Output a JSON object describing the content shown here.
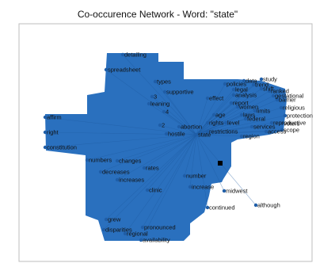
{
  "chart_data": {
    "type": "network",
    "title": "Co-occurence Network - Word: \"state\"",
    "center_word": "state",
    "colors": {
      "region": "#2a70be",
      "node": "#1f5ea8",
      "edge": "#1d5aa0",
      "axes_border": "#bdbdbd",
      "center_marker": "#000000"
    },
    "nodes": [
      {
        "label": "detailing"
      },
      {
        "label": "spreadsheet"
      },
      {
        "label": "types"
      },
      {
        "label": "supportive"
      },
      {
        "label": "3"
      },
      {
        "label": "leaning"
      },
      {
        "label": "4"
      },
      {
        "label": "2"
      },
      {
        "label": "hostile"
      },
      {
        "label": "abortion"
      },
      {
        "label": "state"
      },
      {
        "label": "affirm"
      },
      {
        "label": "right"
      },
      {
        "label": "constitution"
      },
      {
        "label": "numbers"
      },
      {
        "label": "changes"
      },
      {
        "label": "decreases"
      },
      {
        "label": "rates"
      },
      {
        "label": "increases"
      },
      {
        "label": "clinic"
      },
      {
        "label": "number"
      },
      {
        "label": "increase"
      },
      {
        "label": "midwest"
      },
      {
        "label": "continued"
      },
      {
        "label": "although"
      },
      {
        "label": "grew"
      },
      {
        "label": "pronounced"
      },
      {
        "label": "disparities"
      },
      {
        "label": "regional"
      },
      {
        "label": "availability"
      },
      {
        "label": "policies"
      },
      {
        "label": "data"
      },
      {
        "label": "effect"
      },
      {
        "label": "age"
      },
      {
        "label": "rights"
      },
      {
        "label": "restrictions"
      },
      {
        "label": "legal"
      },
      {
        "label": "analysis"
      },
      {
        "label": "trend"
      },
      {
        "label": "shift"
      },
      {
        "label": "reproductive"
      },
      {
        "label": "access"
      },
      {
        "label": "scope"
      },
      {
        "label": "women"
      },
      {
        "label": "federal"
      },
      {
        "label": "ranked"
      },
      {
        "label": "barrier"
      },
      {
        "label": "religious"
      },
      {
        "label": "protection"
      },
      {
        "label": "services"
      },
      {
        "label": "level"
      },
      {
        "label": "study"
      },
      {
        "label": "gestational"
      },
      {
        "label": "laws"
      },
      {
        "label": "limits"
      },
      {
        "label": "report"
      },
      {
        "label": "voters"
      },
      {
        "label": "region"
      }
    ]
  }
}
